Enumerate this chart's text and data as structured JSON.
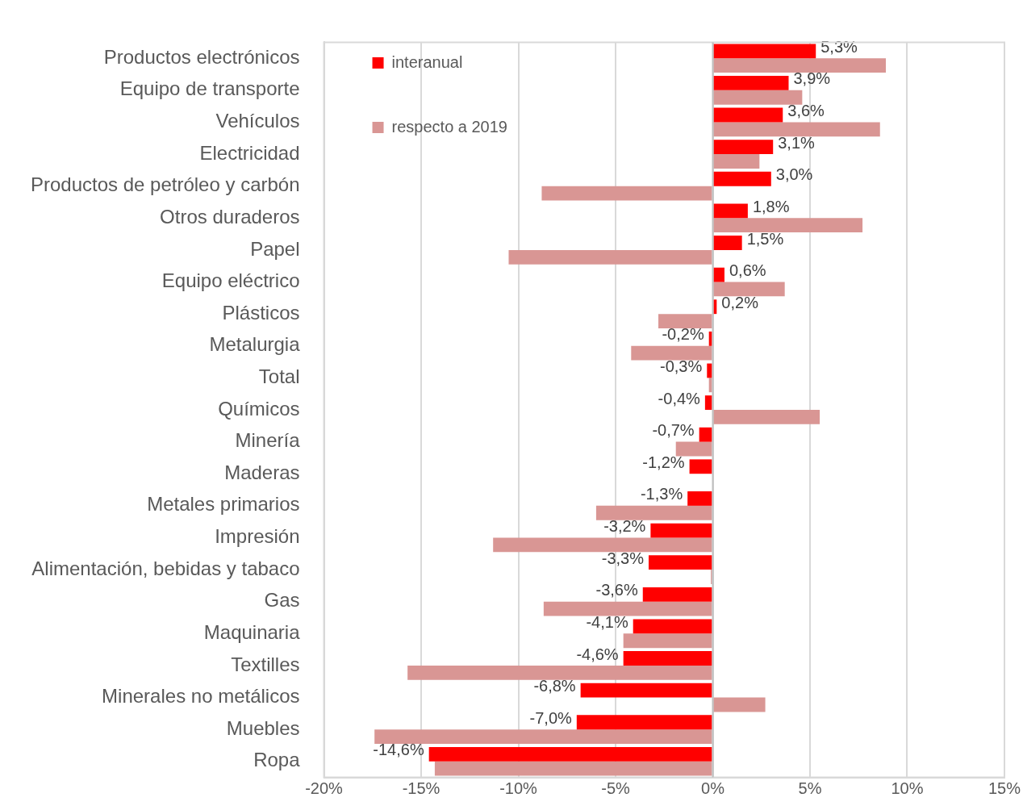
{
  "chart_data": {
    "type": "bar",
    "orientation": "horizontal",
    "categories": [
      "Productos electrónicos",
      "Equipo de transporte",
      "Vehículos",
      "Electricidad",
      "Productos de petróleo y carbón",
      "Otros duraderos",
      "Papel",
      "Equipo eléctrico",
      "Plásticos",
      "Metalurgia",
      "Total",
      "Químicos",
      "Minería",
      "Maderas",
      "Metales primarios",
      "Impresión",
      "Alimentación, bebidas y tabaco",
      "Gas",
      "Maquinaria",
      "Textilles",
      "Minerales no metálicos",
      "Muebles",
      "Ropa"
    ],
    "series": [
      {
        "name": "interanual",
        "color": "#ff0000",
        "values": [
          5.3,
          3.9,
          3.6,
          3.1,
          3.0,
          1.8,
          1.5,
          0.6,
          0.2,
          -0.2,
          -0.3,
          -0.4,
          -0.7,
          -1.2,
          -1.3,
          -3.2,
          -3.3,
          -3.6,
          -4.1,
          -4.6,
          -6.8,
          -7.0,
          -14.6
        ],
        "value_labels": [
          "5,3%",
          "3,9%",
          "3,6%",
          "3,1%",
          "3,0%",
          "1,8%",
          "1,5%",
          "0,6%",
          "0,2%",
          "-0,2%",
          "-0,3%",
          "-0,4%",
          "-0,7%",
          "-1,2%",
          "-1,3%",
          "-3,2%",
          "-3,3%",
          "-3,6%",
          "-4,1%",
          "-4,6%",
          "-6,8%",
          "-7,0%",
          "-14,6%"
        ]
      },
      {
        "name": "respecto a 2019",
        "color": "#d99694",
        "values": [
          8.9,
          4.6,
          8.6,
          2.4,
          -8.8,
          7.7,
          -10.5,
          3.7,
          -2.8,
          -4.2,
          -0.2,
          5.5,
          -1.9,
          0,
          -6.0,
          -11.3,
          -0.1,
          -8.7,
          -4.6,
          -15.7,
          2.7,
          -17.4,
          -14.3
        ]
      }
    ],
    "xlim": [
      -20,
      15
    ],
    "xticks": [
      {
        "value": -20,
        "label": "-20%"
      },
      {
        "value": -15,
        "label": "-15%"
      },
      {
        "value": -10,
        "label": "-10%"
      },
      {
        "value": -5,
        "label": "-5%"
      },
      {
        "value": 0,
        "label": "0%"
      },
      {
        "value": 5,
        "label": "5%"
      },
      {
        "value": 10,
        "label": "10%"
      },
      {
        "value": 15,
        "label": "15%"
      }
    ],
    "grid": "x",
    "legend": "top left"
  }
}
